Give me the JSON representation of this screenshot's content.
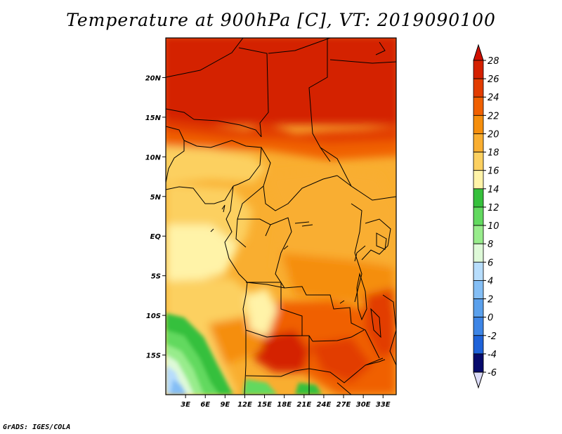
{
  "title": "Temperature at 900hPa [C], VT: 2019090100",
  "footer": "GrADS: IGES/COLA",
  "map": {
    "lon_range": [
      0,
      35
    ],
    "lat_range": [
      -20,
      25
    ],
    "x_ticks": [
      "3E",
      "6E",
      "9E",
      "12E",
      "15E",
      "18E",
      "21E",
      "24E",
      "27E",
      "30E",
      "33E"
    ],
    "x_tick_values": [
      3,
      6,
      9,
      12,
      15,
      18,
      21,
      24,
      27,
      30,
      33
    ],
    "y_ticks": [
      "20N",
      "15N",
      "10N",
      "5N",
      "EQ",
      "5S",
      "10S",
      "15S"
    ],
    "y_tick_values": [
      20,
      15,
      10,
      5,
      0,
      -5,
      -10,
      -15
    ]
  },
  "colorbar": {
    "labels": [
      "28",
      "26",
      "24",
      "22",
      "20",
      "18",
      "16",
      "14",
      "12",
      "10",
      "8",
      "6",
      "4",
      "2",
      "0",
      "-2",
      "-4",
      "-6"
    ],
    "colors": [
      "#d42000",
      "#e23c00",
      "#f06000",
      "#f58e0c",
      "#f9ae30",
      "#fcd060",
      "#fff3a8",
      "#36c03c",
      "#62d95f",
      "#98ec8c",
      "#def9d8",
      "#b7ddfc",
      "#84bef5",
      "#5aa0ec",
      "#3d85e6",
      "#1e62d9",
      "#0b3eba",
      "#060a6c"
    ],
    "top_triangle_color": "#d01000",
    "bottom_triangle_color": "#dcdcf8"
  }
}
